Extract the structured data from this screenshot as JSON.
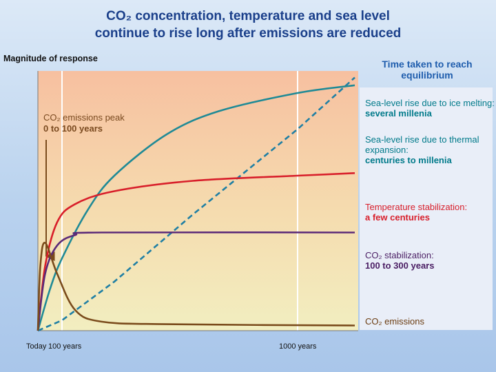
{
  "chart_data": {
    "type": "line",
    "title": {
      "line1": "CO₂ concentration, temperature and sea level",
      "line2": "continue to rise long after emissions are reduced"
    },
    "ylabel": "Magnitude of response",
    "legend_header": "Time taken to reach equilibrium",
    "xticks": [
      {
        "label": "Today",
        "x": 0
      },
      {
        "label": "100 years",
        "x": 100
      },
      {
        "label": "1000 years",
        "x": 1000
      }
    ],
    "annotation": {
      "line1": "CO₂ emissions peak",
      "line2": "0 to 100 years"
    },
    "series": [
      {
        "name": "sea_ice",
        "label": "Sea-level rise due to ice melting:",
        "sub": "several millenia",
        "color": "#1f7fa4",
        "dashed": true,
        "points": [
          [
            0,
            0.0
          ],
          [
            100,
            0.04
          ],
          [
            300,
            0.19
          ],
          [
            600,
            0.45
          ],
          [
            1000,
            0.78
          ],
          [
            1200,
            0.98
          ]
        ]
      },
      {
        "name": "sea_thermal",
        "label": "Sea-level rise due to thermal expansion:",
        "sub": "centuries to millenia",
        "color": "#1f8a96",
        "dashed": false,
        "points": [
          [
            0,
            0.0
          ],
          [
            50,
            0.16
          ],
          [
            100,
            0.28
          ],
          [
            200,
            0.47
          ],
          [
            300,
            0.6
          ],
          [
            500,
            0.76
          ],
          [
            700,
            0.85
          ],
          [
            1000,
            0.92
          ],
          [
            1200,
            0.95
          ]
        ]
      },
      {
        "name": "temperature",
        "label": "Temperature stabilization:",
        "sub": "a few centuries",
        "color": "#d81e2a",
        "dashed": false,
        "points": [
          [
            0,
            0.0
          ],
          [
            30,
            0.25
          ],
          [
            80,
            0.42
          ],
          [
            150,
            0.49
          ],
          [
            300,
            0.54
          ],
          [
            600,
            0.58
          ],
          [
            1000,
            0.6
          ],
          [
            1200,
            0.61
          ]
        ]
      },
      {
        "name": "co2",
        "label": "CO₂ stabilization:",
        "sub": "100 to 300 years",
        "color": "#5b2a78",
        "dashed": false,
        "points": [
          [
            0,
            0.0
          ],
          [
            30,
            0.22
          ],
          [
            80,
            0.33
          ],
          [
            150,
            0.37
          ],
          [
            250,
            0.38
          ],
          [
            1200,
            0.38
          ]
        ]
      },
      {
        "name": "emissions",
        "label": "CO₂ emissions",
        "sub": "",
        "color": "#7a4b1c",
        "dashed": false,
        "points": [
          [
            0,
            0.0
          ],
          [
            10,
            0.25
          ],
          [
            30,
            0.34
          ],
          [
            80,
            0.22
          ],
          [
            150,
            0.08
          ],
          [
            250,
            0.035
          ],
          [
            500,
            0.025
          ],
          [
            1200,
            0.02
          ]
        ]
      }
    ]
  }
}
